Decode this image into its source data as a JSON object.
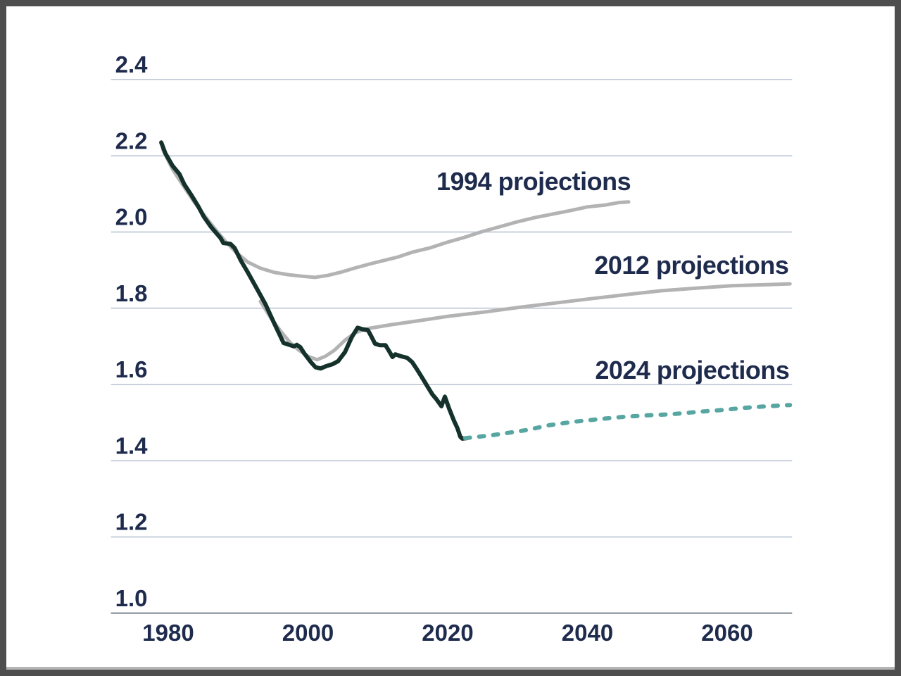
{
  "window": {
    "frame_color": "#4e4e4e",
    "background": "#ffffff",
    "bottom_edge_color": "#b4b4b4"
  },
  "colors": {
    "grid": "#c9d1dd",
    "axis_line": "#9aa1a9",
    "text": "#1e2b4d",
    "historical_line": "#14322b",
    "projection_gray": "#b3b3b3",
    "projection_teal": "#57a6a1"
  },
  "chart_data": {
    "type": "line",
    "title": "",
    "xlabel": "",
    "ylabel": "",
    "grid": true,
    "legend_position": "inline-annotations",
    "x_axis": {
      "range_years": [
        1971.8,
        2069.3
      ],
      "ticks": [
        {
          "label": "1980",
          "value": 1980
        },
        {
          "label": "2000",
          "value": 2000
        },
        {
          "label": "2020",
          "value": 2020
        },
        {
          "label": "2040",
          "value": 2040
        },
        {
          "label": "2060",
          "value": 2060
        }
      ]
    },
    "y_axis": {
      "range": [
        1.0,
        2.4
      ],
      "ticks": [
        {
          "label": "2.4",
          "value": 2.4
        },
        {
          "label": "2.2",
          "value": 2.2
        },
        {
          "label": "2.0",
          "value": 2.0
        },
        {
          "label": "1.8",
          "value": 1.8
        },
        {
          "label": "1.6",
          "value": 1.6
        },
        {
          "label": "1.4",
          "value": 1.4
        },
        {
          "label": "1.2",
          "value": 1.2
        },
        {
          "label": "1.0",
          "value": 1.0
        }
      ]
    },
    "series": [
      {
        "name": "1994 projections",
        "color": "#b3b3b3",
        "width": 5,
        "dash": null,
        "points": [
          [
            1979.2,
            2.217
          ],
          [
            1980.6,
            2.165
          ],
          [
            1982.1,
            2.123
          ],
          [
            1983.6,
            2.082
          ],
          [
            1985.1,
            2.045
          ],
          [
            1986.7,
            2.008
          ],
          [
            1988.2,
            1.975
          ],
          [
            1989.7,
            1.947
          ],
          [
            1991.4,
            1.921
          ],
          [
            1993.2,
            1.905
          ],
          [
            1995.2,
            1.894
          ],
          [
            1997.2,
            1.888
          ],
          [
            1999.2,
            1.884
          ],
          [
            2001.0,
            1.881
          ],
          [
            2002.8,
            1.886
          ],
          [
            2004.8,
            1.895
          ],
          [
            2006.8,
            1.906
          ],
          [
            2008.8,
            1.916
          ],
          [
            2010.8,
            1.925
          ],
          [
            2012.8,
            1.934
          ],
          [
            2014.9,
            1.947
          ],
          [
            2017.4,
            1.958
          ],
          [
            2019.9,
            1.973
          ],
          [
            2022.4,
            1.986
          ],
          [
            2024.9,
            2.001
          ],
          [
            2027.5,
            2.014
          ],
          [
            2030.0,
            2.027
          ],
          [
            2032.5,
            2.038
          ],
          [
            2035.0,
            2.047
          ],
          [
            2037.5,
            2.056
          ],
          [
            2040.0,
            2.066
          ],
          [
            2042.6,
            2.071
          ],
          [
            2044.4,
            2.077
          ],
          [
            2045.9,
            2.079
          ]
        ]
      },
      {
        "name": "2012 projections",
        "color": "#b3b3b3",
        "width": 5,
        "dash": null,
        "points": [
          [
            1993.2,
            1.818
          ],
          [
            1994.7,
            1.774
          ],
          [
            1996.2,
            1.737
          ],
          [
            1997.5,
            1.709
          ],
          [
            1998.7,
            1.69
          ],
          [
            2000.0,
            1.674
          ],
          [
            2001.3,
            1.665
          ],
          [
            2002.5,
            1.674
          ],
          [
            2003.8,
            1.69
          ],
          [
            2005.3,
            1.716
          ],
          [
            2006.8,
            1.736
          ],
          [
            2008.3,
            1.746
          ],
          [
            2012.0,
            1.757
          ],
          [
            2016.1,
            1.768
          ],
          [
            2020.1,
            1.779
          ],
          [
            2025.2,
            1.79
          ],
          [
            2030.5,
            1.803
          ],
          [
            2035.5,
            1.814
          ],
          [
            2040.5,
            1.825
          ],
          [
            2045.6,
            1.836
          ],
          [
            2050.6,
            1.846
          ],
          [
            2055.7,
            1.853
          ],
          [
            2060.7,
            1.859
          ],
          [
            2065.7,
            1.862
          ],
          [
            2069.0,
            1.864
          ]
        ]
      },
      {
        "name": "historical",
        "color": "#14322b",
        "width": 6,
        "dash": null,
        "points": [
          [
            1979.0,
            2.235
          ],
          [
            1979.6,
            2.206
          ],
          [
            1980.6,
            2.174
          ],
          [
            1981.6,
            2.152
          ],
          [
            1982.3,
            2.125
          ],
          [
            1983.3,
            2.097
          ],
          [
            1984.3,
            2.067
          ],
          [
            1985.1,
            2.04
          ],
          [
            1986.1,
            2.014
          ],
          [
            1987.5,
            1.984
          ],
          [
            1987.9,
            1.971
          ],
          [
            1988.9,
            1.969
          ],
          [
            1989.5,
            1.958
          ],
          [
            1990.4,
            1.925
          ],
          [
            1991.4,
            1.894
          ],
          [
            1992.7,
            1.851
          ],
          [
            1993.9,
            1.811
          ],
          [
            1995.2,
            1.759
          ],
          [
            1996.5,
            1.709
          ],
          [
            1997.5,
            1.703
          ],
          [
            1998.0,
            1.7
          ],
          [
            1998.4,
            1.704
          ],
          [
            1998.9,
            1.698
          ],
          [
            1999.5,
            1.681
          ],
          [
            2000.4,
            1.659
          ],
          [
            2001.1,
            1.645
          ],
          [
            2001.8,
            1.642
          ],
          [
            2002.6,
            1.648
          ],
          [
            2003.5,
            1.653
          ],
          [
            2004.3,
            1.661
          ],
          [
            2005.3,
            1.685
          ],
          [
            2006.3,
            1.725
          ],
          [
            2007.1,
            1.749
          ],
          [
            2007.8,
            1.745
          ],
          [
            2008.6,
            1.742
          ],
          [
            2009.1,
            1.725
          ],
          [
            2009.6,
            1.707
          ],
          [
            2010.3,
            1.703
          ],
          [
            2011.1,
            1.703
          ],
          [
            2011.7,
            1.685
          ],
          [
            2012.1,
            1.672
          ],
          [
            2012.5,
            1.679
          ],
          [
            2013.3,
            1.674
          ],
          [
            2014.2,
            1.67
          ],
          [
            2014.9,
            1.659
          ],
          [
            2015.6,
            1.64
          ],
          [
            2016.4,
            1.616
          ],
          [
            2017.2,
            1.592
          ],
          [
            2017.8,
            1.574
          ],
          [
            2018.4,
            1.561
          ],
          [
            2019.1,
            1.543
          ],
          [
            2019.6,
            1.568
          ],
          [
            2020.2,
            1.537
          ],
          [
            2020.9,
            1.505
          ],
          [
            2021.4,
            1.485
          ],
          [
            2021.8,
            1.463
          ],
          [
            2022.1,
            1.458
          ],
          [
            2022.7,
            1.459
          ]
        ]
      },
      {
        "name": "2024 projections",
        "color": "#57a6a1",
        "width": 6,
        "dash": "7 13",
        "points": [
          [
            2022.5,
            1.459
          ],
          [
            2024.4,
            1.463
          ],
          [
            2026.4,
            1.467
          ],
          [
            2029.0,
            1.474
          ],
          [
            2031.5,
            1.481
          ],
          [
            2034.5,
            1.493
          ],
          [
            2038.0,
            1.502
          ],
          [
            2041.6,
            1.509
          ],
          [
            2045.1,
            1.515
          ],
          [
            2048.6,
            1.519
          ],
          [
            2052.1,
            1.522
          ],
          [
            2055.7,
            1.528
          ],
          [
            2059.2,
            1.533
          ],
          [
            2062.7,
            1.539
          ],
          [
            2065.7,
            1.543
          ],
          [
            2069.0,
            1.546
          ]
        ]
      }
    ],
    "annotations": [
      {
        "text": "1994 projections",
        "year": 2032.3,
        "value": 2.11
      },
      {
        "text": "2012 projections",
        "year": 2054.9,
        "value": 1.89
      },
      {
        "text": "2024 projections",
        "year": 2055.0,
        "value": 1.615
      }
    ]
  }
}
